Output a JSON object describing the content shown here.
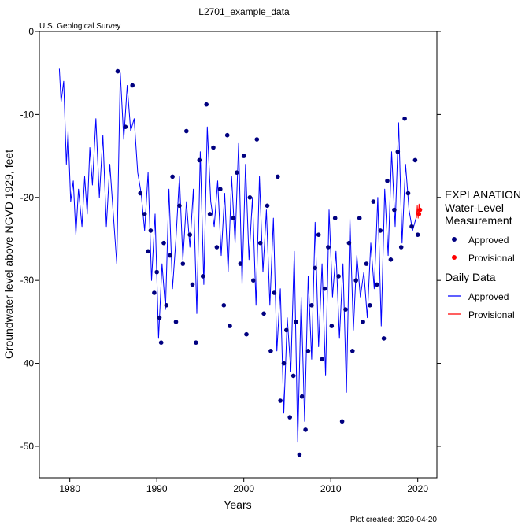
{
  "chart_data": {
    "type": "scatter",
    "title": "L2701_example_data",
    "source_label": "U.S. Geological Survey",
    "xlabel": "Years",
    "ylabel": "Groundwater level above NGVD 1929, feet",
    "xlim": [
      1976.5,
      2022.2
    ],
    "ylim": [
      -53.8,
      0
    ],
    "x_ticks": [
      1980,
      1990,
      2000,
      2010,
      2020
    ],
    "y_ticks": [
      0,
      -10,
      -20,
      -30,
      -40,
      -50
    ],
    "grid": false,
    "legend_position": "right",
    "footer": "Plot created: 2020-04-20",
    "colors": {
      "approved": "#000080",
      "approved_line": "#0000ff",
      "provisional": "#ff0000",
      "source": "#006400"
    },
    "legend": {
      "title": "EXPLANATION",
      "wl_header_1": "Water-Level",
      "wl_header_2": "Measurement",
      "wl_approved": "Approved",
      "wl_provisional": "Provisional",
      "daily_header": "Daily Data",
      "daily_approved": "Approved",
      "daily_provisional": "Provisional"
    },
    "series": [
      {
        "name": "Daily Data Approved",
        "kind": "line",
        "x": [
          1978.8,
          1979.0,
          1979.3,
          1979.6,
          1979.8,
          1980.1,
          1980.4,
          1980.7,
          1981.0,
          1981.4,
          1981.7,
          1982.0,
          1982.3,
          1982.6,
          1983.0,
          1983.4,
          1983.8,
          1984.2,
          1984.6,
          1985.0,
          1985.4,
          1985.8,
          1986.2,
          1986.6,
          1987.0,
          1987.4,
          1987.8,
          1988.2,
          1988.6,
          1989.0,
          1989.4,
          1989.8,
          1990.2,
          1990.6,
          1991.0,
          1991.4,
          1991.8,
          1992.2,
          1992.6,
          1993.0,
          1993.4,
          1993.8,
          1994.2,
          1994.6,
          1995.0,
          1995.4,
          1995.8,
          1996.2,
          1996.6,
          1997.0,
          1997.4,
          1997.8,
          1998.2,
          1998.6,
          1999.0,
          1999.4,
          1999.8,
          2000.2,
          2000.6,
          2001.0,
          2001.4,
          2001.8,
          2002.2,
          2002.6,
          2003.0,
          2003.4,
          2003.8,
          2004.2,
          2004.6,
          2005.0,
          2005.4,
          2005.8,
          2006.2,
          2006.6,
          2007.0,
          2007.4,
          2007.8,
          2008.2,
          2008.6,
          2009.0,
          2009.4,
          2009.8,
          2010.2,
          2010.6,
          2011.0,
          2011.4,
          2011.8,
          2012.2,
          2012.6,
          2013.0,
          2013.4,
          2013.8,
          2014.2,
          2014.6,
          2015.0,
          2015.4,
          2015.8,
          2016.2,
          2016.6,
          2017.0,
          2017.4,
          2017.8,
          2018.2,
          2018.6,
          2019.0,
          2019.4,
          2019.8
        ],
        "y": [
          -4.5,
          -8.5,
          -6.0,
          -16.0,
          -12.0,
          -20.5,
          -18.0,
          -24.5,
          -19.0,
          -23.5,
          -17.5,
          -22.0,
          -14.0,
          -18.5,
          -10.5,
          -20.0,
          -12.5,
          -23.5,
          -16.0,
          -22.0,
          -28.0,
          -5.0,
          -13.0,
          -6.5,
          -12.0,
          -10.5,
          -17.0,
          -19.5,
          -24.0,
          -17.0,
          -30.0,
          -22.0,
          -37.0,
          -28.0,
          -33.5,
          -19.0,
          -31.0,
          -25.0,
          -17.5,
          -27.5,
          -20.5,
          -26.0,
          -19.0,
          -34.0,
          -14.5,
          -30.5,
          -11.5,
          -20.5,
          -23.5,
          -18.0,
          -27.0,
          -19.5,
          -29.0,
          -17.5,
          -25.5,
          -13.5,
          -30.5,
          -16.0,
          -27.5,
          -20.0,
          -33.0,
          -17.5,
          -29.0,
          -21.5,
          -33.0,
          -22.5,
          -38.5,
          -31.0,
          -46.0,
          -34.5,
          -41.0,
          -26.5,
          -49.5,
          -32.0,
          -47.0,
          -29.5,
          -39.5,
          -23.0,
          -38.0,
          -28.0,
          -41.5,
          -21.5,
          -32.0,
          -26.5,
          -37.0,
          -28.0,
          -43.5,
          -22.5,
          -36.0,
          -27.0,
          -32.0,
          -29.0,
          -34.5,
          -25.5,
          -31.0,
          -20.0,
          -35.5,
          -19.0,
          -27.0,
          -14.5,
          -23.5,
          -11.0,
          -25.5,
          -16.0,
          -21.5,
          -24.0,
          -22.5
        ]
      },
      {
        "name": "Water-Level Approved",
        "kind": "points",
        "x": [
          1985.5,
          1986.4,
          1987.2,
          1988.1,
          1988.6,
          1989.0,
          1989.3,
          1989.7,
          1990.0,
          1990.3,
          1990.5,
          1990.8,
          1991.1,
          1991.5,
          1991.8,
          1992.2,
          1992.6,
          1993.0,
          1993.4,
          1993.8,
          1994.1,
          1994.5,
          1994.9,
          1995.3,
          1995.7,
          1996.1,
          1996.5,
          1996.9,
          1997.3,
          1997.7,
          1998.1,
          1998.4,
          1998.8,
          1999.2,
          1999.6,
          2000.0,
          2000.3,
          2000.7,
          2001.1,
          2001.5,
          2001.9,
          2002.3,
          2002.7,
          2003.1,
          2003.5,
          2003.9,
          2004.2,
          2004.6,
          2004.9,
          2005.3,
          2005.7,
          2006.0,
          2006.4,
          2006.7,
          2007.1,
          2007.4,
          2007.8,
          2008.2,
          2008.6,
          2009.0,
          2009.3,
          2009.7,
          2010.1,
          2010.5,
          2010.9,
          2011.3,
          2011.7,
          2012.1,
          2012.5,
          2012.9,
          2013.3,
          2013.7,
          2014.1,
          2014.5,
          2014.9,
          2015.3,
          2015.7,
          2016.1,
          2016.5,
          2016.9,
          2017.3,
          2017.7,
          2018.1,
          2018.5,
          2018.9,
          2019.3,
          2019.7,
          2020.0
        ],
        "y": [
          -4.8,
          -11.5,
          -6.5,
          -19.5,
          -22.0,
          -26.5,
          -24.0,
          -31.5,
          -29.0,
          -34.5,
          -37.5,
          -25.5,
          -33.0,
          -27.0,
          -17.5,
          -35.0,
          -21.0,
          -28.0,
          -12.0,
          -24.5,
          -30.5,
          -37.5,
          -15.5,
          -29.5,
          -8.8,
          -22.0,
          -14.0,
          -26.0,
          -19.0,
          -33.0,
          -12.5,
          -35.5,
          -22.5,
          -17.0,
          -28.0,
          -15.0,
          -36.5,
          -20.0,
          -30.0,
          -13.0,
          -25.5,
          -34.0,
          -21.0,
          -38.5,
          -31.5,
          -17.5,
          -44.5,
          -40.0,
          -36.0,
          -46.5,
          -41.5,
          -35.0,
          -51.0,
          -44.0,
          -48.0,
          -38.5,
          -33.0,
          -28.5,
          -24.5,
          -39.5,
          -31.0,
          -26.0,
          -35.5,
          -22.5,
          -29.5,
          -47.0,
          -33.5,
          -25.5,
          -38.5,
          -30.0,
          -22.5,
          -35.0,
          -28.0,
          -33.0,
          -20.5,
          -30.5,
          -24.0,
          -37.0,
          -18.0,
          -27.5,
          -21.5,
          -14.5,
          -26.0,
          -10.5,
          -19.5,
          -23.5,
          -15.5,
          -24.5
        ]
      },
      {
        "name": "Daily Data Provisional",
        "kind": "line",
        "x": [
          2019.85,
          2019.95,
          2020.05,
          2020.15,
          2020.25
        ],
        "y": [
          -22.5,
          -21.0,
          -22.5,
          -20.8,
          -22.0
        ]
      },
      {
        "name": "Water-Level Provisional",
        "kind": "points",
        "x": [
          2020.15,
          2020.25
        ],
        "y": [
          -22.0,
          -21.5
        ]
      }
    ]
  }
}
